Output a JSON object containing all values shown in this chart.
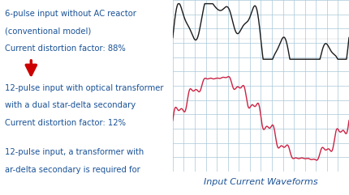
{
  "bg_color": "#cce5ee",
  "grid_color": "#a8c8d8",
  "text_lines_1": [
    "6-pulse input without AC reactor",
    "(conventional model)",
    "Current distortion factor: 88%"
  ],
  "text_lines_2": [
    "12-pulse input with optical transformer",
    "with a dual star-delta secondary",
    "Current distortion factor: 12%"
  ],
  "text_lines_3": [
    "12-pulse input, a transformer with",
    "ar-delta secondary is required for"
  ],
  "caption": "Input Current Waveforms",
  "text_color": "#1a5296",
  "caption_color": "#1a5296",
  "arrow_color": "#cc0000",
  "wave1_color": "#1a1a1a",
  "wave2_color": "#cc2244",
  "text_fontsize": 7.2,
  "caption_fontsize": 8.0,
  "panel_split": 0.495
}
